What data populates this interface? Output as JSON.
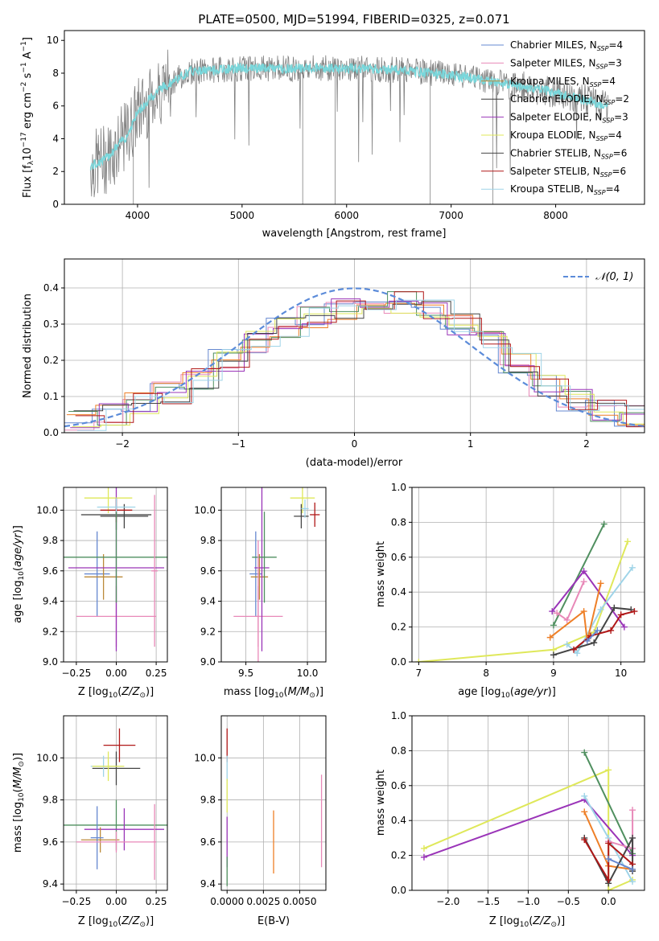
{
  "title": "PLATE=0500, MJD=51994, FIBERID=0325, z=0.071",
  "colors": {
    "Chabrier MILES": "#6688d0",
    "Salpeter MILES": "#e889b8",
    "Kroupa MILES": "#bb8a3a",
    "Chabrier ELODIE": "#3a3a3a",
    "Salpeter ELODIE": "#9a34b8",
    "Kroupa ELODIE": "#dfe85a",
    "Chabrier STELIB": "#444444",
    "Salpeter STELIB": "#b01818",
    "Kroupa STELIB": "#9fd4e8",
    "normal": "#5b8bd9",
    "grid": "#b0b0b0",
    "data": "#808080",
    "model": "#79d7dc",
    "orange": "#ee7f27",
    "green": "#4f8f5f"
  },
  "chart_data": [
    {
      "type": "line",
      "title": "PLATE=0500, MJD=51994, FIBERID=0325, z=0.071",
      "xlabel": "wavelength [Angstrom, rest frame]",
      "ylabel": "Flux [fλ10⁻¹⁷ erg cm⁻² s⁻¹ A⁻¹]",
      "xlim": [
        3300,
        8850
      ],
      "ylim": [
        0,
        10.6
      ],
      "xticks": [
        "4000",
        "5000",
        "6000",
        "7000",
        "8000"
      ],
      "yticks": [
        "0",
        "2",
        "4",
        "6",
        "8",
        "10"
      ],
      "legend_position": "top-right",
      "legend": [
        {
          "label": "Chabrier MILES, N",
          "sub": "SSP",
          "tail": "=4"
        },
        {
          "label": "Salpeter MILES, N",
          "sub": "SSP",
          "tail": "=3"
        },
        {
          "label": "Kroupa MILES, N",
          "sub": "SSP",
          "tail": "=4"
        },
        {
          "label": "Chabrier ELODIE, N",
          "sub": "SSP",
          "tail": "=2"
        },
        {
          "label": "Salpeter ELODIE, N",
          "sub": "SSP",
          "tail": "=3"
        },
        {
          "label": "Kroupa ELODIE, N",
          "sub": "SSP",
          "tail": "=4"
        },
        {
          "label": "Chabrier STELIB, N",
          "sub": "SSP",
          "tail": "=6"
        },
        {
          "label": "Salpeter STELIB, N",
          "sub": "SSP",
          "tail": "=6"
        },
        {
          "label": "Kroupa STELIB, N",
          "sub": "SSP",
          "tail": "=4"
        }
      ],
      "continuum": {
        "x": [
          3550,
          3700,
          3900,
          4000,
          4200,
          4500,
          5000,
          5500,
          6000,
          6500,
          7000,
          7500,
          8000,
          8500
        ],
        "y": [
          2.3,
          2.8,
          4.2,
          5.6,
          7.0,
          8.1,
          8.3,
          8.3,
          8.3,
          8.2,
          7.9,
          7.4,
          6.8,
          6.0
        ]
      }
    },
    {
      "type": "line",
      "xlabel": "(data-model)/error",
      "ylabel": "Normed distribution",
      "xlim": [
        -2.5,
        2.5
      ],
      "ylim": [
        0,
        0.48
      ],
      "xticks": [
        "−2",
        "−1",
        "0",
        "1",
        "2"
      ],
      "yticks": [
        "0.0",
        "0.1",
        "0.2",
        "0.3",
        "0.4"
      ],
      "legend_position": "top-right",
      "legend": [
        "𝒩(0, 1)"
      ],
      "hist_base": {
        "x": [
          -2.45,
          -2.2,
          -1.95,
          -1.7,
          -1.45,
          -1.2,
          -0.95,
          -0.7,
          -0.45,
          -0.2,
          0.05,
          0.3,
          0.55,
          0.8,
          1.05,
          1.3,
          1.55,
          1.8,
          2.05,
          2.3
        ],
        "y": [
          0.035,
          0.05,
          0.08,
          0.11,
          0.15,
          0.2,
          0.25,
          0.29,
          0.32,
          0.34,
          0.37,
          0.36,
          0.34,
          0.3,
          0.25,
          0.19,
          0.13,
          0.09,
          0.06,
          0.045
        ]
      }
    },
    {
      "type": "scatter",
      "xlabel": "Z [log₁₀(Z/Z⊙)]",
      "ylabel": "age  [log₁₀(age/yr)]",
      "xlim": [
        -0.33,
        0.32
      ],
      "ylim": [
        9.0,
        10.15
      ],
      "xticks": [
        "−0.25",
        "0.00",
        "0.25"
      ],
      "yticks": [
        "9.0",
        "9.2",
        "9.4",
        "9.6",
        "9.8",
        "10.0"
      ],
      "points": [
        {
          "series": "Chabrier MILES",
          "x": -0.12,
          "y": 9.58,
          "xerr": 0.08,
          "yerr": 0.28
        },
        {
          "series": "Salpeter MILES",
          "x": 0.0,
          "y": 9.3,
          "xerr": 0.25,
          "yerr": 0.2
        },
        {
          "series": "Kroupa MILES",
          "x": -0.08,
          "y": 9.56,
          "xerr": 0.12,
          "yerr": 0.15
        },
        {
          "series": "Chabrier ELODIE",
          "x": 0.0,
          "y": 9.97,
          "xerr": 0.22,
          "yerr": 0.1
        },
        {
          "series": "Salpeter ELODIE",
          "x": 0.0,
          "y": 9.62,
          "xerr": 0.3,
          "yerr": 0.55
        },
        {
          "series": "Kroupa ELODIE",
          "x": -0.05,
          "y": 10.08,
          "xerr": 0.15,
          "yerr": 0.1
        },
        {
          "series": "Chabrier STELIB",
          "x": 0.05,
          "y": 9.96,
          "xerr": 0.15,
          "yerr": 0.08
        },
        {
          "series": "Salpeter STELIB",
          "x": 0.0,
          "y": 10.0,
          "xerr": 0.1,
          "yerr": 0.08
        },
        {
          "series": "Kroupa STELIB",
          "x": 0.0,
          "y": 10.02,
          "xerr": 0.12,
          "yerr": 0.06
        },
        {
          "series": "green",
          "x": 0.0,
          "y": 9.69,
          "xerr": 0.33,
          "yerr": 0.3
        },
        {
          "series": "Salpeter MILES",
          "x": 0.24,
          "y": 9.6,
          "xerr": 0.02,
          "yerr": 0.5
        }
      ]
    },
    {
      "type": "scatter",
      "xlabel": "mass [log₁₀(M/M⊙)]",
      "ylabel": "",
      "xlim": [
        9.3,
        10.15
      ],
      "ylim": [
        9.0,
        10.15
      ],
      "xticks": [
        "9.5",
        "10.0"
      ],
      "yticks": [
        "9.0",
        "9.2",
        "9.4",
        "9.6",
        "9.8",
        "10.0"
      ],
      "points": [
        {
          "series": "Chabrier MILES",
          "x": 9.58,
          "y": 9.58,
          "xerr": 0.05,
          "yerr": 0.28
        },
        {
          "series": "Salpeter MILES",
          "x": 9.6,
          "y": 9.3,
          "xerr": 0.2,
          "yerr": 0.2
        },
        {
          "series": "Kroupa MILES",
          "x": 9.61,
          "y": 9.56,
          "xerr": 0.07,
          "yerr": 0.15
        },
        {
          "series": "Salpeter ELODIE",
          "x": 9.63,
          "y": 9.62,
          "xerr": 0.06,
          "yerr": 0.55
        },
        {
          "series": "green",
          "x": 9.65,
          "y": 9.69,
          "xerr": 0.1,
          "yerr": 0.3
        },
        {
          "series": "Kroupa ELODIE",
          "x": 9.96,
          "y": 10.08,
          "xerr": 0.1,
          "yerr": 0.1
        },
        {
          "series": "Chabrier STELIB",
          "x": 9.95,
          "y": 9.96,
          "xerr": 0.06,
          "yerr": 0.08
        },
        {
          "series": "Salpeter STELIB",
          "x": 10.06,
          "y": 9.97,
          "xerr": 0.04,
          "yerr": 0.08
        },
        {
          "series": "Kroupa STELIB",
          "x": 9.98,
          "y": 10.01,
          "xerr": 0.03,
          "yerr": 0.06
        },
        {
          "series": "Salpeter MILES",
          "x": 9.6,
          "y": 9.3,
          "xerr": 0.01,
          "yerr": 0.5
        }
      ]
    },
    {
      "type": "line",
      "xlabel": "age  [log₁₀(age/yr)]",
      "ylabel": "mass weight",
      "xlim": [
        6.9,
        10.35
      ],
      "ylim": [
        0,
        1.0
      ],
      "xticks": [
        "7",
        "8",
        "9",
        "10"
      ],
      "yticks": [
        "0.0",
        "0.2",
        "0.4",
        "0.6",
        "0.8",
        "1.0"
      ],
      "series": [
        {
          "name": "Kroupa ELODIE",
          "x": [
            7.0,
            9.0,
            9.6,
            10.1
          ],
          "y": [
            0.0,
            0.07,
            0.17,
            0.69
          ]
        },
        {
          "name": "green",
          "x": [
            9.0,
            9.75
          ],
          "y": [
            0.21,
            0.79
          ]
        },
        {
          "name": "Salpeter ELODIE",
          "x": [
            8.98,
            9.45,
            10.05
          ],
          "y": [
            0.29,
            0.52,
            0.2
          ]
        },
        {
          "name": "Kroupa STELIB",
          "x": [
            9.2,
            9.35,
            9.7,
            10.17
          ],
          "y": [
            0.1,
            0.05,
            0.3,
            0.54
          ]
        },
        {
          "name": "Salpeter MILES",
          "x": [
            9.05,
            9.2,
            9.45
          ],
          "y": [
            0.28,
            0.24,
            0.46
          ]
        },
        {
          "name": "orange",
          "x": [
            8.95,
            9.45,
            9.5,
            9.7
          ],
          "y": [
            0.14,
            0.29,
            0.12,
            0.45
          ]
        },
        {
          "name": "Chabrier STELIB",
          "x": [
            9.0,
            9.6,
            9.9,
            10.15
          ],
          "y": [
            0.04,
            0.11,
            0.31,
            0.3
          ]
        },
        {
          "name": "Salpeter STELIB",
          "x": [
            9.3,
            9.55,
            9.85,
            10.0,
            10.2
          ],
          "y": [
            0.07,
            0.15,
            0.18,
            0.27,
            0.29
          ]
        },
        {
          "name": "Chabrier MILES",
          "x": [
            9.5,
            9.65
          ],
          "y": [
            0.12,
            0.18
          ]
        }
      ]
    },
    {
      "type": "scatter",
      "xlabel": "Z [log₁₀(Z/Z⊙)]",
      "ylabel": "mass [log₁₀(M/M⊙)]",
      "xlim": [
        -0.33,
        0.32
      ],
      "ylim": [
        9.37,
        10.2
      ],
      "xticks": [
        "−0.25",
        "0.00",
        "0.25"
      ],
      "yticks": [
        "9.4",
        "9.6",
        "9.8",
        "10.0"
      ],
      "points": [
        {
          "series": "Salpeter STELIB",
          "x": 0.02,
          "y": 10.06,
          "xerr": 0.1,
          "yerr": 0.08
        },
        {
          "series": "Chabrier STELIB",
          "x": 0.0,
          "y": 9.95,
          "xerr": 0.15,
          "yerr": 0.08
        },
        {
          "series": "Kroupa STELIB",
          "x": -0.08,
          "y": 9.96,
          "xerr": 0.08,
          "yerr": 0.05
        },
        {
          "series": "Kroupa ELODIE",
          "x": -0.05,
          "y": 9.96,
          "xerr": 0.1,
          "yerr": 0.07
        },
        {
          "series": "green",
          "x": 0.0,
          "y": 9.68,
          "xerr": 0.33,
          "yerr": 0.12
        },
        {
          "series": "Salpeter ELODIE",
          "x": 0.05,
          "y": 9.66,
          "xerr": 0.25,
          "yerr": 0.1
        },
        {
          "series": "Kroupa MILES",
          "x": -0.1,
          "y": 9.61,
          "xerr": 0.12,
          "yerr": 0.06
        },
        {
          "series": "Chabrier MILES",
          "x": -0.12,
          "y": 9.62,
          "xerr": 0.04,
          "yerr": 0.15
        },
        {
          "series": "Salpeter MILES",
          "x": 0.0,
          "y": 9.6,
          "xerr": 0.25,
          "yerr": 0.05
        },
        {
          "series": "Salpeter MILES",
          "x": 0.24,
          "y": 9.6,
          "xerr": 0.01,
          "yerr": 0.18
        }
      ]
    },
    {
      "type": "scatter",
      "xlabel": "E(B-V)",
      "ylabel": "",
      "xlim": [
        -0.0004,
        0.0068
      ],
      "ylim": [
        9.37,
        10.2
      ],
      "xticks": [
        "0.0000",
        "0.0025",
        "0.0050"
      ],
      "yticks": [
        "9.4",
        "9.6",
        "9.8",
        "10.0"
      ],
      "points": [
        {
          "series": "Salpeter STELIB",
          "x": 0.0,
          "y": 10.06,
          "yerr": 0.08
        },
        {
          "series": "Kroupa STELIB",
          "x": 0.0,
          "y": 9.95,
          "yerr": 0.06
        },
        {
          "series": "Kroupa ELODIE",
          "x": 0.0,
          "y": 9.82,
          "yerr": 0.08
        },
        {
          "series": "Salpeter ELODIE",
          "x": 0.0,
          "y": 9.6,
          "yerr": 0.12
        },
        {
          "series": "green",
          "x": 0.0,
          "y": 9.46,
          "yerr": 0.07
        },
        {
          "series": "orange",
          "x": 0.0032,
          "y": 9.6,
          "yerr": 0.15
        },
        {
          "series": "Salpeter MILES",
          "x": 0.0065,
          "y": 9.7,
          "yerr": 0.22
        }
      ]
    },
    {
      "type": "line",
      "xlabel": "Z [log₁₀(Z/Z⊙)]",
      "ylabel": "mass weight",
      "xlim": [
        -2.45,
        0.45
      ],
      "ylim": [
        0,
        1.0
      ],
      "xticks": [
        "−2.0",
        "−1.5",
        "−1.0",
        "−0.5",
        "0.0"
      ],
      "yticks": [
        "0.0",
        "0.2",
        "0.4",
        "0.6",
        "0.8",
        "1.0"
      ],
      "series": [
        {
          "name": "Kroupa ELODIE",
          "x": [
            -2.3,
            0.0,
            0.0,
            0.3
          ],
          "y": [
            0.24,
            0.69,
            0.0,
            0.06
          ]
        },
        {
          "name": "Salpeter ELODIE",
          "x": [
            -2.3,
            -0.3,
            0.3
          ],
          "y": [
            0.19,
            0.52,
            0.2
          ]
        },
        {
          "name": "green",
          "x": [
            -0.3,
            0.3
          ],
          "y": [
            0.79,
            0.21
          ]
        },
        {
          "name": "Kroupa STELIB",
          "x": [
            -0.3,
            0.0,
            0.3
          ],
          "y": [
            0.54,
            0.3,
            0.05
          ]
        },
        {
          "name": "Salpeter MILES",
          "x": [
            0.3,
            0.3,
            0.0
          ],
          "y": [
            0.46,
            0.24,
            0.28
          ]
        },
        {
          "name": "orange",
          "x": [
            -0.3,
            0.0,
            0.3
          ],
          "y": [
            0.45,
            0.14,
            0.12
          ]
        },
        {
          "name": "Chabrier STELIB",
          "x": [
            -0.3,
            0.0,
            0.3,
            0.3
          ],
          "y": [
            0.3,
            0.04,
            0.3,
            0.11
          ]
        },
        {
          "name": "Salpeter STELIB",
          "x": [
            -0.3,
            0.0,
            0.0,
            0.3
          ],
          "y": [
            0.29,
            0.06,
            0.27,
            0.15
          ]
        },
        {
          "name": "Chabrier MILES",
          "x": [
            0.0,
            0.3
          ],
          "y": [
            0.18,
            0.12
          ]
        }
      ]
    }
  ]
}
